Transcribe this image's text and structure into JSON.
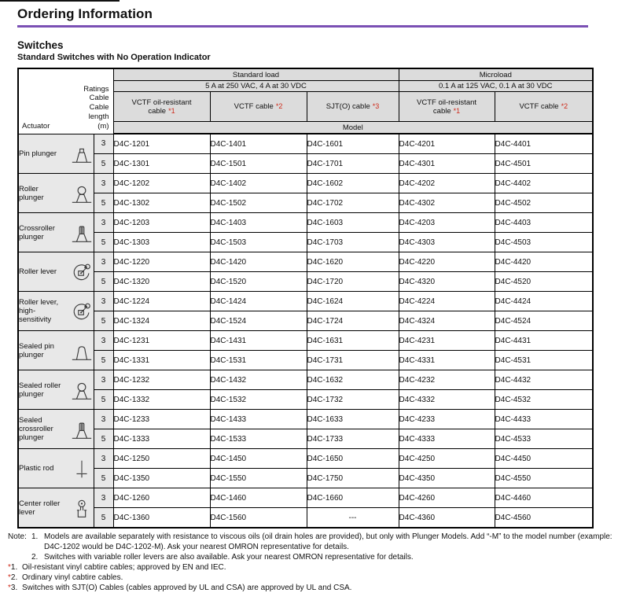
{
  "page": {
    "title": "Ordering Information",
    "section": "Switches",
    "subsection": "Standard Switches with No Operation Indicator",
    "colors": {
      "accent_rule": "#7a50b4",
      "footnote_red": "#cf2b1b",
      "header_gray": "#dcdcdc"
    }
  },
  "table": {
    "corner": {
      "ratings_label": "Ratings",
      "cable_label": "Cable",
      "length_line1": "Cable",
      "length_line2": "length",
      "length_unit": "(m)",
      "actuator_label": "Actuator"
    },
    "load_groups": [
      {
        "label": "Standard load",
        "rating": "5 A at 250 VAC, 4 A at 30 VDC"
      },
      {
        "label": "Microload",
        "rating": "0.1 A at 125 VAC, 0.1 A at 30 VDC"
      }
    ],
    "cable_columns": [
      {
        "label": "VCTF oil-resistant\ncable",
        "note": "*1"
      },
      {
        "label": "VCTF cable",
        "note": "*2"
      },
      {
        "label": "SJT(O) cable",
        "note": "*3"
      },
      {
        "label": "VCTF oil-resistant\ncable",
        "note": "*1"
      },
      {
        "label": "VCTF cable",
        "note": "*2"
      }
    ],
    "model_label": "Model",
    "rows": [
      {
        "actuator": "Pin plunger",
        "icon": "pin-plunger",
        "variants": [
          {
            "length": "3",
            "models": [
              "D4C-1201",
              "D4C-1401",
              "D4C-1601",
              "D4C-4201",
              "D4C-4401"
            ]
          },
          {
            "length": "5",
            "models": [
              "D4C-1301",
              "D4C-1501",
              "D4C-1701",
              "D4C-4301",
              "D4C-4501"
            ]
          }
        ]
      },
      {
        "actuator": "Roller plunger",
        "icon": "roller-plunger",
        "variants": [
          {
            "length": "3",
            "models": [
              "D4C-1202",
              "D4C-1402",
              "D4C-1602",
              "D4C-4202",
              "D4C-4402"
            ]
          },
          {
            "length": "5",
            "models": [
              "D4C-1302",
              "D4C-1502",
              "D4C-1702",
              "D4C-4302",
              "D4C-4502"
            ]
          }
        ]
      },
      {
        "actuator": "Crossroller plunger",
        "icon": "crossroller-plunger",
        "variants": [
          {
            "length": "3",
            "models": [
              "D4C-1203",
              "D4C-1403",
              "D4C-1603",
              "D4C-4203",
              "D4C-4403"
            ]
          },
          {
            "length": "5",
            "models": [
              "D4C-1303",
              "D4C-1503",
              "D4C-1703",
              "D4C-4303",
              "D4C-4503"
            ]
          }
        ]
      },
      {
        "actuator": "Roller lever",
        "icon": "roller-lever",
        "variants": [
          {
            "length": "3",
            "models": [
              "D4C-1220",
              "D4C-1420",
              "D4C-1620",
              "D4C-4220",
              "D4C-4420"
            ]
          },
          {
            "length": "5",
            "models": [
              "D4C-1320",
              "D4C-1520",
              "D4C-1720",
              "D4C-4320",
              "D4C-4520"
            ]
          }
        ]
      },
      {
        "actuator": "Roller lever, high-sensitivity",
        "icon": "roller-lever",
        "variants": [
          {
            "length": "3",
            "models": [
              "D4C-1224",
              "D4C-1424",
              "D4C-1624",
              "D4C-4224",
              "D4C-4424"
            ]
          },
          {
            "length": "5",
            "models": [
              "D4C-1324",
              "D4C-1524",
              "D4C-1724",
              "D4C-4324",
              "D4C-4524"
            ]
          }
        ]
      },
      {
        "actuator": "Sealed pin plunger",
        "icon": "sealed-pin-plunger",
        "variants": [
          {
            "length": "3",
            "models": [
              "D4C-1231",
              "D4C-1431",
              "D4C-1631",
              "D4C-4231",
              "D4C-4431"
            ]
          },
          {
            "length": "5",
            "models": [
              "D4C-1331",
              "D4C-1531",
              "D4C-1731",
              "D4C-4331",
              "D4C-4531"
            ]
          }
        ]
      },
      {
        "actuator": "Sealed roller plunger",
        "icon": "roller-plunger",
        "variants": [
          {
            "length": "3",
            "models": [
              "D4C-1232",
              "D4C-1432",
              "D4C-1632",
              "D4C-4232",
              "D4C-4432"
            ]
          },
          {
            "length": "5",
            "models": [
              "D4C-1332",
              "D4C-1532",
              "D4C-1732",
              "D4C-4332",
              "D4C-4532"
            ]
          }
        ]
      },
      {
        "actuator": "Sealed crossroller plunger",
        "icon": "crossroller-plunger",
        "variants": [
          {
            "length": "3",
            "models": [
              "D4C-1233",
              "D4C-1433",
              "D4C-1633",
              "D4C-4233",
              "D4C-4433"
            ]
          },
          {
            "length": "5",
            "models": [
              "D4C-1333",
              "D4C-1533",
              "D4C-1733",
              "D4C-4333",
              "D4C-4533"
            ]
          }
        ]
      },
      {
        "actuator": "Plastic rod",
        "icon": "plastic-rod",
        "variants": [
          {
            "length": "3",
            "models": [
              "D4C-1250",
              "D4C-1450",
              "D4C-1650",
              "D4C-4250",
              "D4C-4450"
            ]
          },
          {
            "length": "5",
            "models": [
              "D4C-1350",
              "D4C-1550",
              "D4C-1750",
              "D4C-4350",
              "D4C-4550"
            ]
          }
        ]
      },
      {
        "actuator": "Center roller lever",
        "icon": "center-roller-lever",
        "variants": [
          {
            "length": "3",
            "models": [
              "D4C-1260",
              "D4C-1460",
              "D4C-1660",
              "D4C-4260",
              "D4C-4460"
            ]
          },
          {
            "length": "5",
            "models": [
              "D4C-1360",
              "D4C-1560",
              "---",
              "D4C-4360",
              "D4C-4560"
            ]
          }
        ]
      }
    ]
  },
  "notes": {
    "note_label": "Note:",
    "items": [
      {
        "num": "1.",
        "text": "Models are available separately with resistance to viscous oils (oil drain holes are provided), but only with Plunger Models. Add “-M” to the model number (example: D4C-1202 would be D4C-1202-M). Ask your nearest OMRON representative for details."
      },
      {
        "num": "2.",
        "text": "Switches with variable roller levers are also available. Ask your nearest OMRON representative for details."
      }
    ],
    "footnotes": [
      {
        "star": "*",
        "num": "1.",
        "text": "Oil-resistant vinyl cabtire cables; approved by EN and IEC."
      },
      {
        "star": "*",
        "num": "2.",
        "text": "Ordinary vinyl cabtire cables."
      },
      {
        "star": "*",
        "num": "3.",
        "text": "Switches with SJT(O) Cables (cables approved by UL and CSA) are approved by UL and CSA."
      }
    ]
  }
}
